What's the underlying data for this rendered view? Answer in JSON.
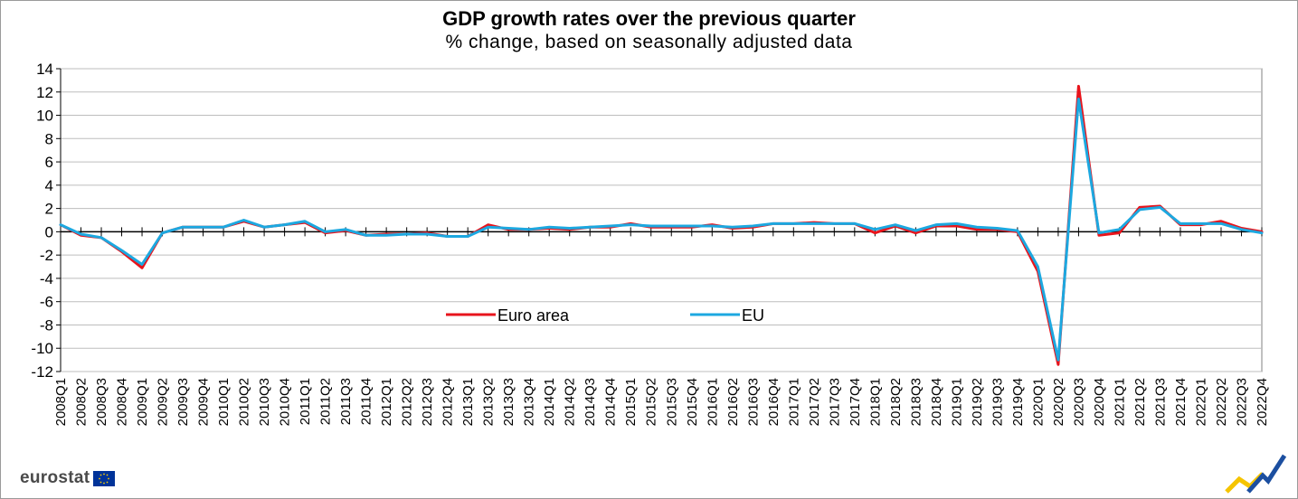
{
  "chart_data": {
    "type": "line",
    "title": "GDP growth rates over the previous quarter",
    "subtitle": "% change, based on seasonally adjusted data",
    "xlabel": "",
    "ylabel": "",
    "ylim": [
      -12,
      14
    ],
    "yticks": [
      14,
      12,
      10,
      8,
      6,
      4,
      2,
      0,
      -2,
      -4,
      -6,
      -8,
      -10,
      -12
    ],
    "grid": true,
    "legend_position": "lower-center",
    "categories": [
      "2008Q1",
      "2008Q2",
      "2008Q3",
      "2008Q4",
      "2009Q1",
      "2009Q2",
      "2009Q3",
      "2009Q4",
      "2010Q1",
      "2010Q2",
      "2010Q3",
      "2010Q4",
      "2011Q1",
      "2011Q2",
      "2011Q3",
      "2011Q4",
      "2012Q1",
      "2012Q2",
      "2012Q3",
      "2012Q4",
      "2013Q1",
      "2013Q2",
      "2013Q3",
      "2013Q4",
      "2014Q1",
      "2014Q2",
      "2014Q3",
      "2014Q4",
      "2015Q1",
      "2015Q2",
      "2015Q3",
      "2015Q4",
      "2016Q1",
      "2016Q2",
      "2016Q3",
      "2016Q4",
      "2017Q1",
      "2017Q2",
      "2017Q3",
      "2017Q4",
      "2018Q1",
      "2018Q2",
      "2018Q3",
      "2018Q4",
      "2019Q1",
      "2019Q2",
      "2019Q3",
      "2019Q4",
      "2020Q1",
      "2020Q2",
      "2020Q3",
      "2020Q4",
      "2021Q1",
      "2021Q2",
      "2021Q3",
      "2021Q4",
      "2022Q1",
      "2022Q2",
      "2022Q3",
      "2022Q4"
    ],
    "series": [
      {
        "name": "Euro area",
        "color": "#e8141c",
        "values": [
          0.6,
          -0.3,
          -0.5,
          -1.7,
          -3.1,
          -0.1,
          0.4,
          0.4,
          0.4,
          0.9,
          0.4,
          0.6,
          0.8,
          -0.1,
          0.1,
          -0.3,
          -0.2,
          -0.2,
          -0.1,
          -0.4,
          -0.4,
          0.6,
          0.2,
          0.2,
          0.3,
          0.2,
          0.4,
          0.4,
          0.7,
          0.4,
          0.4,
          0.4,
          0.6,
          0.3,
          0.4,
          0.7,
          0.7,
          0.8,
          0.7,
          0.7,
          -0.1,
          0.5,
          -0.1,
          0.5,
          0.5,
          0.2,
          0.2,
          0.0,
          -3.4,
          -11.4,
          12.5,
          -0.3,
          -0.1,
          2.1,
          2.2,
          0.6,
          0.6,
          0.9,
          0.3,
          0.0
        ]
      },
      {
        "name": "EU",
        "color": "#1ca8e0",
        "values": [
          0.6,
          -0.2,
          -0.5,
          -1.6,
          -2.8,
          -0.1,
          0.4,
          0.4,
          0.4,
          1.0,
          0.4,
          0.6,
          0.9,
          0.0,
          0.2,
          -0.3,
          -0.3,
          -0.2,
          -0.2,
          -0.4,
          -0.4,
          0.4,
          0.3,
          0.2,
          0.4,
          0.3,
          0.4,
          0.5,
          0.6,
          0.5,
          0.5,
          0.5,
          0.5,
          0.4,
          0.5,
          0.7,
          0.7,
          0.7,
          0.7,
          0.7,
          0.2,
          0.6,
          0.1,
          0.6,
          0.7,
          0.4,
          0.3,
          0.1,
          -3.0,
          -11.0,
          11.4,
          -0.1,
          0.2,
          1.9,
          2.1,
          0.7,
          0.7,
          0.7,
          0.2,
          -0.1
        ]
      }
    ]
  },
  "branding": {
    "logo_text": "eurostat",
    "flag_color": "#003399",
    "mark_colors": [
      "#f5c400",
      "#1c4fa0"
    ]
  }
}
